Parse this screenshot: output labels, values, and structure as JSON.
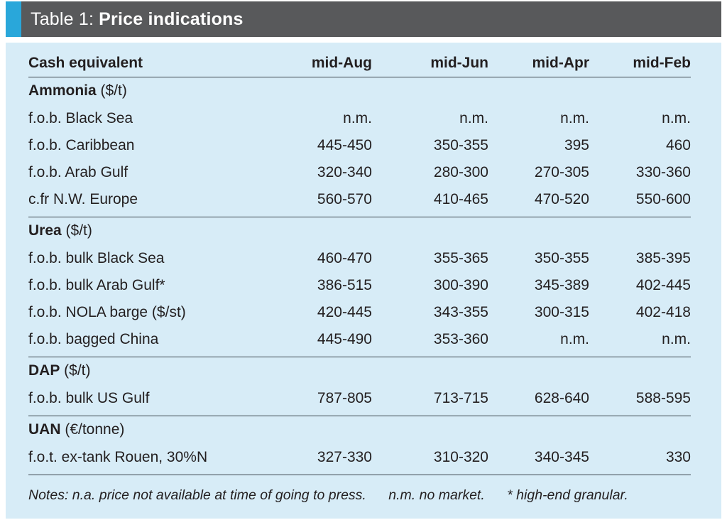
{
  "header": {
    "title_prefix": "Table 1:",
    "title_bold": "Price indications"
  },
  "table": {
    "columns": [
      "Cash equivalent",
      "mid-Aug",
      "mid-Jun",
      "mid-Apr",
      "mid-Feb"
    ],
    "sections": [
      {
        "name": "Ammonia",
        "unit": "($/t)",
        "rows": [
          {
            "label": "f.o.b. Black Sea",
            "values": [
              "n.m.",
              "n.m.",
              "n.m.",
              "n.m."
            ]
          },
          {
            "label": "f.o.b. Caribbean",
            "values": [
              "445-450",
              "350-355",
              "395",
              "460"
            ]
          },
          {
            "label": "f.o.b. Arab Gulf",
            "values": [
              "320-340",
              "280-300",
              "270-305",
              "330-360"
            ]
          },
          {
            "label": "c.fr N.W. Europe",
            "values": [
              "560-570",
              "410-465",
              "470-520",
              "550-600"
            ]
          }
        ]
      },
      {
        "name": "Urea",
        "unit": "($/t)",
        "rows": [
          {
            "label": "f.o.b. bulk Black Sea",
            "values": [
              "460-470",
              "355-365",
              "350-355",
              "385-395"
            ]
          },
          {
            "label": "f.o.b. bulk Arab Gulf*",
            "values": [
              "386-515",
              "300-390",
              "345-389",
              "402-445"
            ]
          },
          {
            "label": "f.o.b. NOLA barge ($/st)",
            "values": [
              "420-445",
              "343-355",
              "300-315",
              "402-418"
            ]
          },
          {
            "label": "f.o.b. bagged China",
            "values": [
              "445-490",
              "353-360",
              "n.m.",
              "n.m."
            ]
          }
        ]
      },
      {
        "name": "DAP",
        "unit": "($/t)",
        "rows": [
          {
            "label": "f.o.b. bulk US Gulf",
            "values": [
              "787-805",
              "713-715",
              "628-640",
              "588-595"
            ]
          }
        ]
      },
      {
        "name": "UAN",
        "unit": "(€/tonne)",
        "rows": [
          {
            "label": "f.o.t. ex-tank Rouen, 30%N",
            "values": [
              "327-330",
              "310-320",
              "340-345",
              "330"
            ]
          }
        ]
      }
    ]
  },
  "notes": {
    "note_na": "Notes: n.a. price not available at time of going to press.",
    "note_nm": "n.m. no market.",
    "note_granular": "* high-end granular."
  },
  "colors": {
    "accent_blue": "#29a7da",
    "header_gray": "#58595b",
    "body_light_blue": "#d7ecf7",
    "text_dark": "#231f20",
    "line_color": "#3a444c"
  }
}
